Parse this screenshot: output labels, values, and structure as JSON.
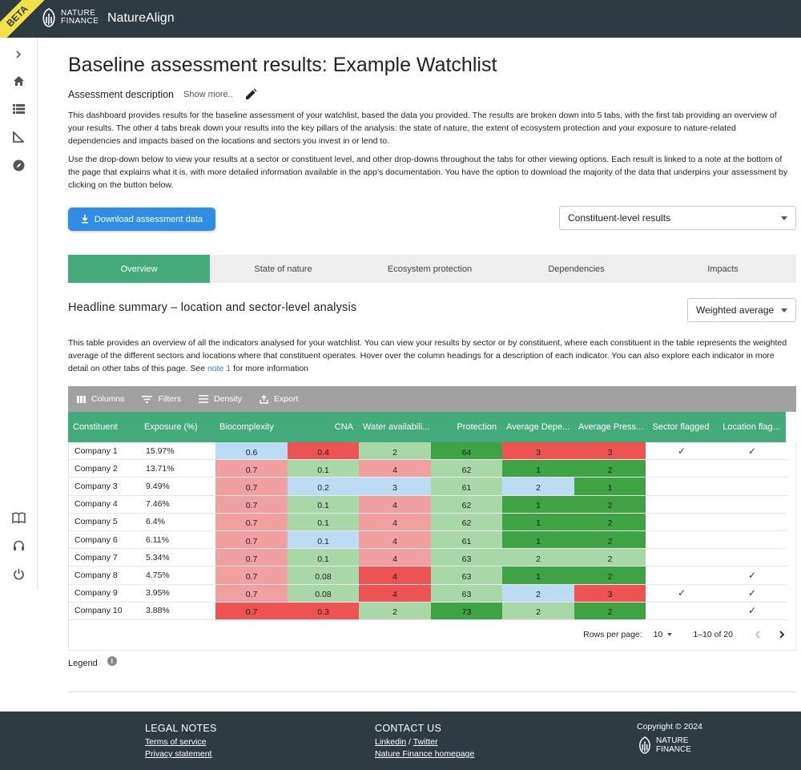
{
  "header": {
    "beta": "BETA",
    "logo_line1": "NATURE",
    "logo_line2": "FINANCE",
    "app_name": "NatureAlign"
  },
  "sidebar": {
    "icons": [
      "chevron-right-icon",
      "home-icon",
      "list-icon",
      "ruler-icon",
      "compass-icon",
      "book-icon",
      "headset-icon",
      "power-icon"
    ]
  },
  "page": {
    "title": "Baseline assessment results: Example Watchlist",
    "description_label": "Assessment description",
    "show_more": "Show more..",
    "paragraph1": "This dashboard provides results for the baseline assessment of your watchlist, based the data you provided. The results are broken down into 5 tabs, with the first tab providing an overview of your results. The other 4 tabs break down your results into the key pillars of the analysis: the state of nature, the extent of ecosystem protection and your exposure to nature-related dependencies and impacts based on the locations and sectors you invest in or lend to.",
    "paragraph2": "Use the drop-down below to view your results at a sector or constituent level, and other drop-downs throughout the tabs for other viewing options. Each result is linked to a note at the bottom of the page that explains what it is, with more detailed information available in the app’s documentation. You have the option to download the majority of the data that underpins your assessment by clicking on the button below.",
    "download_label": "Download assessment data",
    "level_select": "Constituent-level results"
  },
  "tabs": [
    "Overview",
    "State of nature",
    "Ecosystem protection",
    "Dependencies",
    "Impacts"
  ],
  "summary": {
    "title": "Headline summary – location and sector-level analysis",
    "weight_select": "Weighted average",
    "text_before": "This table provides an overview of all the indicators analysed for your watchlist. You can view your results by sector or by constituent, where each constituent in the table represents the weighted average of the different sectors and locations where that constituent operates. Hover over the column headings for a description of each indicator. You can also explore each indicator in more detail on other tabs of this page. See ",
    "note_link": "note 1",
    "text_after": " for more information"
  },
  "toolbar": {
    "columns": "Columns",
    "filters": "Filters",
    "density": "Density",
    "export": "Export"
  },
  "table": {
    "headers": [
      "Constituent",
      "Exposure (%)",
      "Biocomplexity",
      "CNA",
      "Water availabili...",
      "Protection",
      "Average Depe...",
      "Average Press...",
      "Sector flagged",
      "Location flag..."
    ],
    "rows": [
      {
        "name": "Company 1",
        "exposure": "15.97%",
        "bio": "0.6",
        "cna": "0.4",
        "water": "2",
        "prot": "64",
        "dep": "3",
        "press": "3",
        "sector": "✓",
        "location": "✓"
      },
      {
        "name": "Company 2",
        "exposure": "13.71%",
        "bio": "0.7",
        "cna": "0.1",
        "water": "4",
        "prot": "62",
        "dep": "1",
        "press": "2",
        "sector": "",
        "location": ""
      },
      {
        "name": "Company 3",
        "exposure": "9.49%",
        "bio": "0.7",
        "cna": "0.2",
        "water": "3",
        "prot": "61",
        "dep": "2",
        "press": "1",
        "sector": "",
        "location": ""
      },
      {
        "name": "Company 4",
        "exposure": "7.46%",
        "bio": "0.7",
        "cna": "0.1",
        "water": "4",
        "prot": "62",
        "dep": "1",
        "press": "2",
        "sector": "",
        "location": ""
      },
      {
        "name": "Company 5",
        "exposure": "6.4%",
        "bio": "0.7",
        "cna": "0.1",
        "water": "4",
        "prot": "62",
        "dep": "1",
        "press": "2",
        "sector": "",
        "location": ""
      },
      {
        "name": "Company 6",
        "exposure": "6.11%",
        "bio": "0.7",
        "cna": "0.1",
        "water": "4",
        "prot": "61",
        "dep": "1",
        "press": "2",
        "sector": "",
        "location": ""
      },
      {
        "name": "Company 7",
        "exposure": "5.34%",
        "bio": "0.7",
        "cna": "0.1",
        "water": "4",
        "prot": "63",
        "dep": "2",
        "press": "2",
        "sector": "",
        "location": ""
      },
      {
        "name": "Company 8",
        "exposure": "4.75%",
        "bio": "0.7",
        "cna": "0.08",
        "water": "4",
        "prot": "63",
        "dep": "1",
        "press": "2",
        "sector": "",
        "location": "✓"
      },
      {
        "name": "Company 9",
        "exposure": "3.95%",
        "bio": "0.7",
        "cna": "0.08",
        "water": "4",
        "prot": "63",
        "dep": "2",
        "press": "3",
        "sector": "✓",
        "location": "✓"
      },
      {
        "name": "Company 10",
        "exposure": "3.88%",
        "bio": "0.7",
        "cna": "0.3",
        "water": "2",
        "prot": "73",
        "dep": "2",
        "press": "2",
        "sector": "",
        "location": "✓"
      }
    ],
    "colors": {
      "light_blue": "#bcdcf5",
      "light_red": "#f0a0a0",
      "red": "#ed5353",
      "light_green": "#a8d8a8",
      "green": "#3fa345",
      "medium_green": "#49ac4f"
    },
    "cell_colors": [
      [
        "light_blue",
        "red",
        "light_green",
        "green",
        "red",
        "red"
      ],
      [
        "light_red",
        "light_green",
        "light_red",
        "light_green",
        "green",
        "green"
      ],
      [
        "light_red",
        "light_blue",
        "light_blue",
        "light_green",
        "light_blue",
        "green"
      ],
      [
        "light_red",
        "light_green",
        "light_red",
        "light_green",
        "green",
        "green"
      ],
      [
        "light_red",
        "light_green",
        "light_red",
        "light_green",
        "green",
        "green"
      ],
      [
        "light_red",
        "light_blue",
        "light_red",
        "light_green",
        "green",
        "green"
      ],
      [
        "light_red",
        "light_green",
        "light_red",
        "light_green",
        "light_green",
        "light_green"
      ],
      [
        "light_red",
        "light_green",
        "red",
        "light_green",
        "green",
        "green"
      ],
      [
        "light_red",
        "light_green",
        "red",
        "light_green",
        "light_blue",
        "red"
      ],
      [
        "red",
        "red",
        "light_green",
        "green",
        "light_green",
        "green"
      ]
    ]
  },
  "pagination": {
    "rows_label": "Rows per page:",
    "rows_value": "10",
    "range": "1–10 of 20"
  },
  "legend": {
    "label": "Legend"
  },
  "footer": {
    "legal_heading": "LEGAL NOTES",
    "terms": "Terms of service",
    "privacy": "Privacy statement",
    "contact_heading": "CONTACT US",
    "linkedin": "Linkedin",
    "slash": " / ",
    "twitter": "Twitter",
    "homepage": "Nature Finance homepage",
    "copyright": "Copyright © 2024",
    "logo_line1": "NATURE",
    "logo_line2": "FINANCE"
  }
}
